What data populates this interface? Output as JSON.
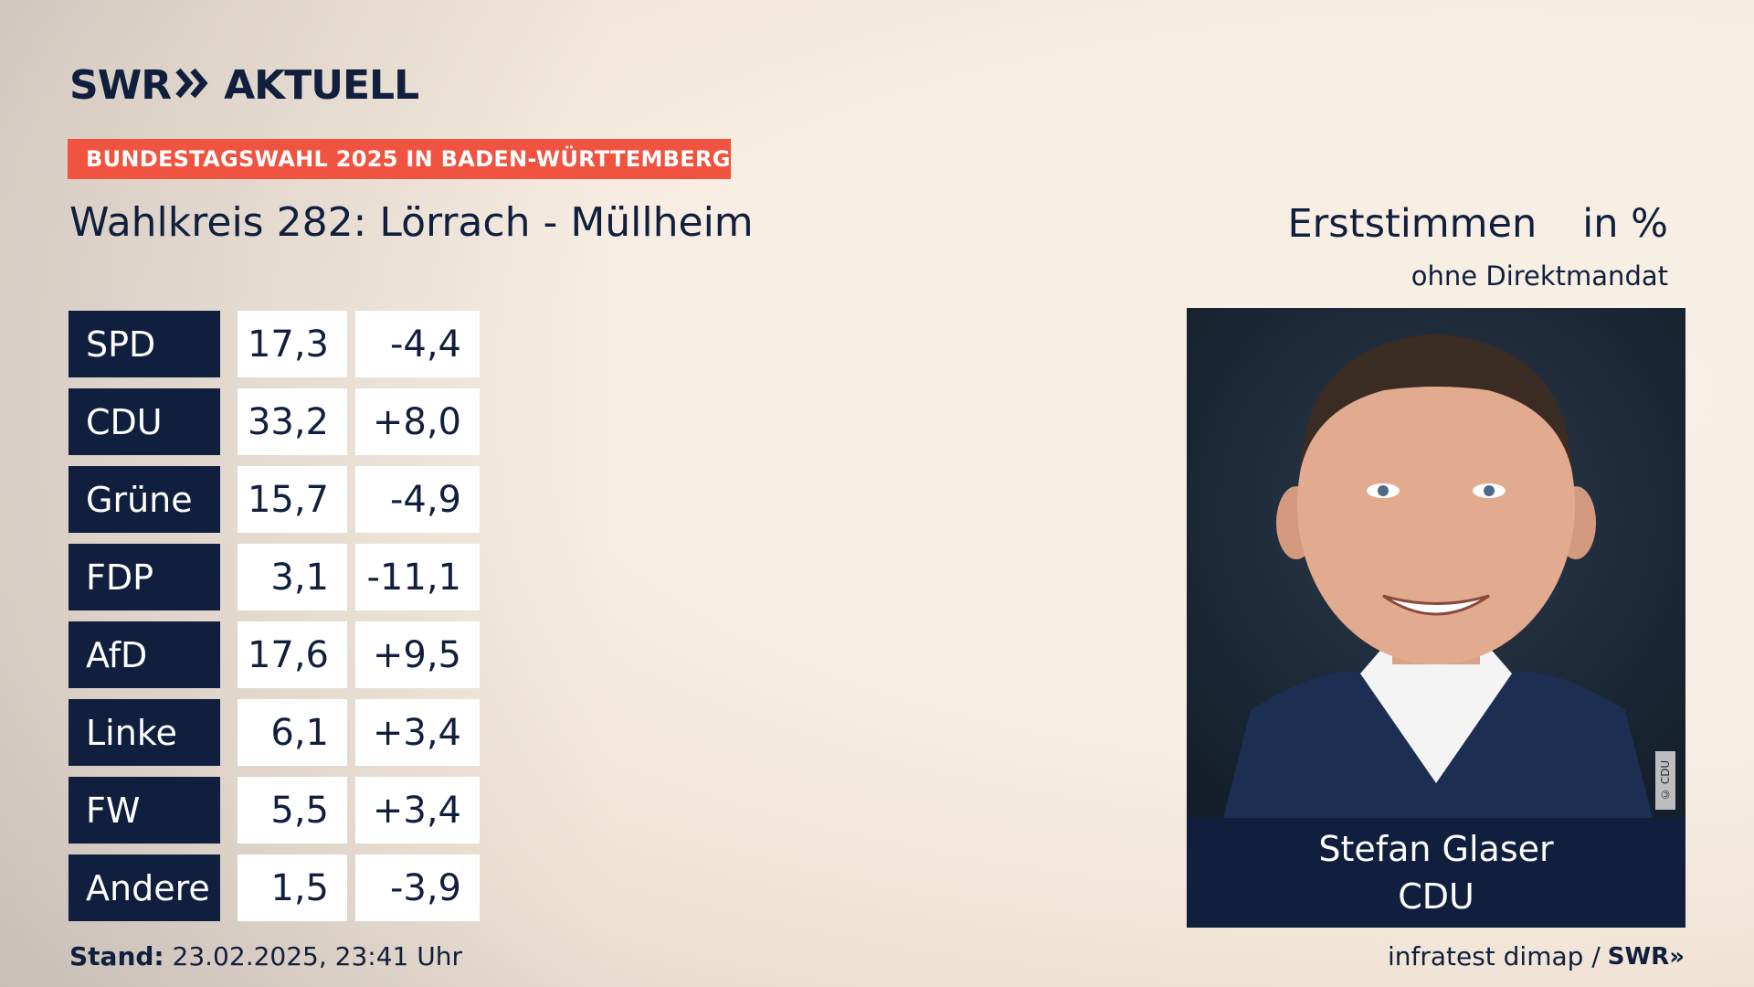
{
  "brand": {
    "logo_left": "SWR",
    "logo_arrows": "»",
    "logo_right": "AKTUELL"
  },
  "banner": "BUNDESTAGSWAHL 2025 IN BADEN-WÜRTTEMBERG",
  "district": "Wahlkreis 282: Lörrach - Müllheim",
  "vote_type": "Erststimmen",
  "unit": "in %",
  "mandate_note": "ohne Direktmandat",
  "results": [
    {
      "party": "SPD",
      "value": "17,3",
      "diff": "-4,4"
    },
    {
      "party": "CDU",
      "value": "33,2",
      "diff": "+8,0"
    },
    {
      "party": "Grüne",
      "value": "15,7",
      "diff": "-4,9"
    },
    {
      "party": "FDP",
      "value": "3,1",
      "diff": "-11,1"
    },
    {
      "party": "AfD",
      "value": "17,6",
      "diff": "+9,5"
    },
    {
      "party": "Linke",
      "value": "6,1",
      "diff": "+3,4"
    },
    {
      "party": "FW",
      "value": "5,5",
      "diff": "+3,4"
    },
    {
      "party": "Andere",
      "value": "1,5",
      "diff": "-3,9"
    }
  ],
  "candidate": {
    "name": "Stefan Glaser",
    "party": "CDU",
    "photo_credit": "© CDU"
  },
  "footer": {
    "stand_label": "Stand:",
    "stand_value": "23.02.2025, 23:41 Uhr",
    "source": "infratest dimap /",
    "source_brand": "SWR»"
  },
  "colors": {
    "navy": "#0f1f3d",
    "banner": "#f0533f",
    "background": "#f7ede2"
  }
}
